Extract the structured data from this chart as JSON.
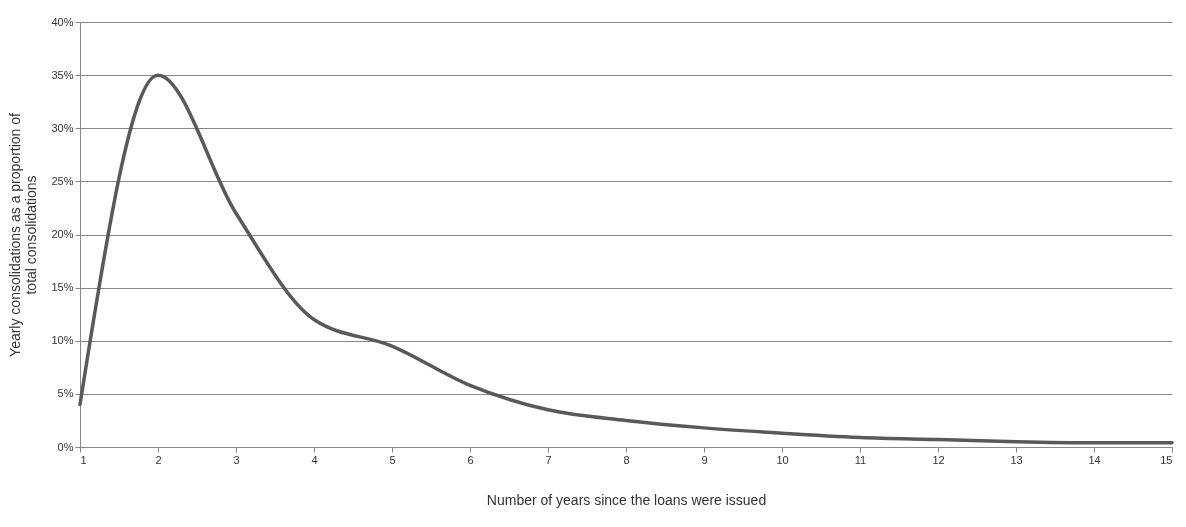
{
  "chart_data": {
    "type": "line",
    "xlabel": "Number of years since the loans were issued",
    "ylabel": "Yearly consolidations as a proportion of total consolidations",
    "x": [
      1,
      2,
      3,
      4,
      5,
      6,
      7,
      8,
      9,
      10,
      11,
      12,
      13,
      14,
      15
    ],
    "series": [
      {
        "color": "#595959",
        "values": [
          4,
          35,
          22,
          12,
          9.5,
          5.8,
          3.5,
          2.5,
          1.8,
          1.3,
          0.9,
          0.7,
          0.5,
          0.4,
          0.4
        ]
      }
    ],
    "xlim": [
      1,
      15
    ],
    "xticks": [
      1,
      2,
      3,
      4,
      5,
      6,
      7,
      8,
      9,
      10,
      11,
      12,
      13,
      14,
      15
    ],
    "ylim": [
      0,
      40
    ],
    "yticks": [
      {
        "value": 0,
        "label": "0%"
      },
      {
        "value": 5,
        "label": "5%"
      },
      {
        "value": 10,
        "label": "10%"
      },
      {
        "value": 15,
        "label": "15%"
      },
      {
        "value": 20,
        "label": "20%"
      },
      {
        "value": 25,
        "label": "25%"
      },
      {
        "value": 30,
        "label": "30%"
      },
      {
        "value": 35,
        "label": "35%"
      },
      {
        "value": 40,
        "label": "40%"
      }
    ],
    "grid": "y",
    "marker": "none",
    "line_style": "solid"
  }
}
